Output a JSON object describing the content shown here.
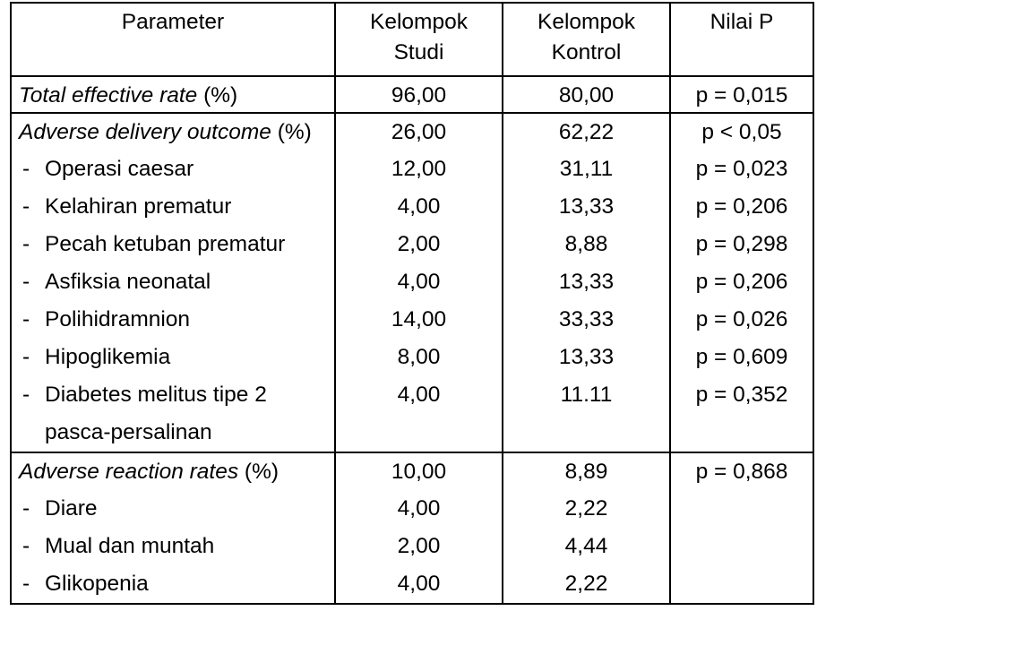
{
  "table": {
    "border_color": "#000000",
    "text_color": "#000000",
    "background": "#ffffff",
    "header": {
      "parameter": "Parameter",
      "studi": "Kelompok\nStudi",
      "kontrol": "Kelompok\nKontrol",
      "nilai_p": "Nilai P"
    },
    "rows": [
      {
        "em": "Total effective rate",
        "rest": " (%)",
        "studi": "96,00",
        "kontrol": "80,00",
        "p": "p = 0,015"
      },
      {
        "em": "Adverse delivery outcome",
        "rest": " (%)",
        "studi": "26,00",
        "kontrol": "62,22",
        "p": "p < 0,05"
      },
      {
        "bullet": "-",
        "label": "Operasi caesar",
        "studi": "12,00",
        "kontrol": "31,11",
        "p": "p = 0,023"
      },
      {
        "bullet": "-",
        "label": "Kelahiran prematur",
        "studi": "4,00",
        "kontrol": "13,33",
        "p": "p = 0,206"
      },
      {
        "bullet": "-",
        "label": "Pecah ketuban prematur",
        "studi": "2,00",
        "kontrol": "8,88",
        "p": "p = 0,298"
      },
      {
        "bullet": "-",
        "label": "Asfiksia neonatal",
        "studi": "4,00",
        "kontrol": "13,33",
        "p": "p = 0,206"
      },
      {
        "bullet": "-",
        "label": "Polihidramnion",
        "studi": "14,00",
        "kontrol": "33,33",
        "p": "p = 0,026"
      },
      {
        "bullet": "-",
        "label": "Hipoglikemia",
        "studi": "8,00",
        "kontrol": "13,33",
        "p": "p = 0,609"
      },
      {
        "bullet": "-",
        "label": "Diabetes melitus tipe 2\npasca-persalinan",
        "studi": "4,00",
        "kontrol": "11.11",
        "p": "p = 0,352"
      },
      {
        "em": "Adverse reaction rates",
        "rest": " (%)",
        "studi": "10,00",
        "kontrol": "8,89",
        "p": "p = 0,868"
      },
      {
        "bullet": "-",
        "label": "Diare",
        "studi": "4,00",
        "kontrol": "2,22",
        "p": ""
      },
      {
        "bullet": "-",
        "label": "Mual dan muntah",
        "studi": "2,00",
        "kontrol": "4,44",
        "p": ""
      },
      {
        "bullet": "-",
        "label": "Glikopenia",
        "studi": "4,00",
        "kontrol": "2,22",
        "p": ""
      }
    ]
  }
}
